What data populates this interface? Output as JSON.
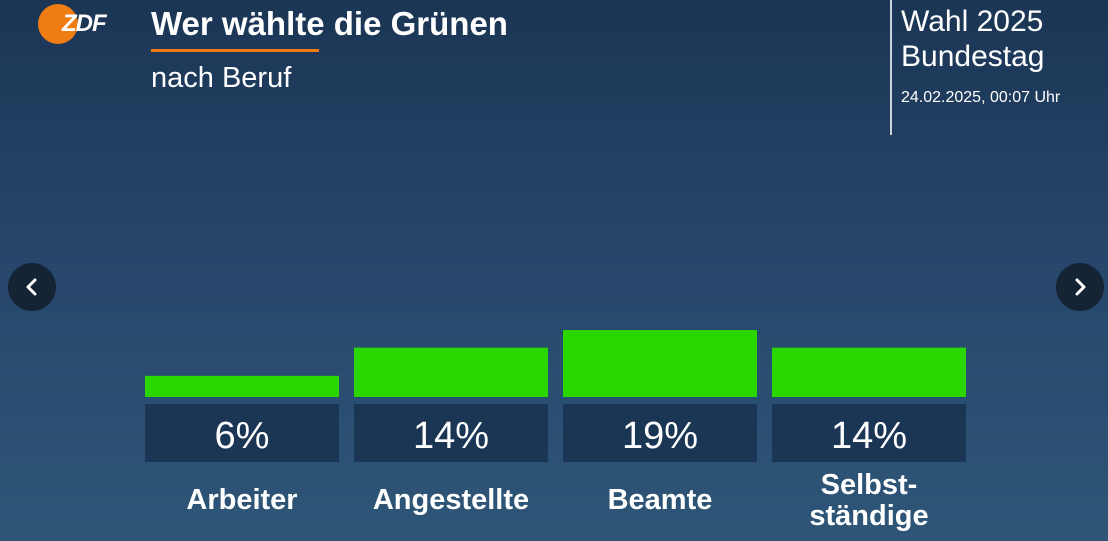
{
  "branding": {
    "logo_text": "ZDF",
    "logo_color": "#f07d14"
  },
  "header": {
    "title": "Wer wählte die Grünen",
    "subtitle": "nach Beruf",
    "accent_color": "#f07d14"
  },
  "info": {
    "election": "Wahl 2025\nBundestag",
    "timestamp": "24.02.2025, 00:07 Uhr"
  },
  "navigation": {
    "prev_icon": "chevron-left-icon",
    "next_icon": "chevron-right-icon"
  },
  "chart_data": {
    "type": "bar",
    "title": "Wer wählte die Grünen",
    "subtitle": "nach Beruf",
    "categories": [
      "Arbeiter",
      "Angestellte",
      "Beamte",
      "Selbst-\nständige"
    ],
    "values": [
      6,
      14,
      19,
      14
    ],
    "value_labels": [
      "6%",
      "14%",
      "19%",
      "14%"
    ],
    "unit": "%",
    "bar_color": "#29d600",
    "label_box_color": "#1b3554",
    "ylim": [
      0,
      19
    ],
    "grid": false,
    "legend": "none"
  }
}
